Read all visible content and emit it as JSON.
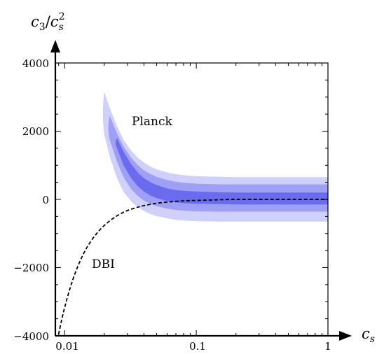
{
  "chart_data": {
    "type": "area",
    "title": "",
    "xlabel": "c_s",
    "ylabel": "c_3/c_s^2",
    "xscale": "log",
    "xlim": [
      0.0085,
      1
    ],
    "ylim": [
      -4000,
      4000
    ],
    "xticks": [
      0.01,
      0.1,
      1
    ],
    "xtick_labels": [
      "0.01",
      "0.1",
      "1"
    ],
    "yticks": [
      4000,
      2000,
      0,
      -2000,
      -4000
    ],
    "ytick_labels": [
      "4000",
      "2000",
      "0",
      "−2000",
      "−4000"
    ],
    "grid": false,
    "colors": {
      "band_outer": "#cfd0fb",
      "band_middle": "#9e9ff5",
      "band_inner": "#6a6bef",
      "dbi_curve": "#000000"
    },
    "series": [
      {
        "name": "Planck",
        "style": "filled-bands",
        "x": [
          0.02,
          0.022,
          0.025,
          0.028,
          0.032,
          0.036,
          0.04,
          0.045,
          0.05,
          0.06,
          0.07,
          0.08,
          0.1,
          0.15,
          0.2,
          0.3,
          0.5,
          1.0
        ],
        "outer_upper": [
          3150,
          2680,
          2150,
          1750,
          1430,
          1220,
          1080,
          960,
          880,
          790,
          740,
          710,
          680,
          660,
          650,
          650,
          650,
          650
        ],
        "outer_lower": [
          1900,
          1250,
          620,
          220,
          -60,
          -230,
          -340,
          -430,
          -490,
          -560,
          -600,
          -620,
          -640,
          -650,
          -650,
          -650,
          -650,
          -650
        ],
        "middle_upper": [
          null,
          2450,
          1930,
          1550,
          1220,
          1000,
          850,
          740,
          660,
          570,
          520,
          490,
          460,
          440,
          440,
          440,
          440,
          440
        ],
        "middle_lower": [
          null,
          1750,
          1100,
          650,
          300,
          100,
          -40,
          -140,
          -200,
          -270,
          -310,
          -330,
          -350,
          -360,
          -360,
          -360,
          -360,
          -360
        ],
        "inner_upper": [
          null,
          null,
          1800,
          1400,
          1030,
          780,
          620,
          500,
          420,
          320,
          270,
          250,
          230,
          210,
          200,
          200,
          200,
          200
        ],
        "inner_lower": [
          null,
          null,
          1500,
          1000,
          620,
          380,
          230,
          110,
          40,
          -50,
          -90,
          -110,
          -130,
          -140,
          -150,
          -150,
          -150,
          -150
        ]
      },
      {
        "name": "DBI",
        "style": "dashed-line",
        "x": [
          0.009,
          0.0095,
          0.01,
          0.011,
          0.012,
          0.013,
          0.014,
          0.015,
          0.017,
          0.02,
          0.025,
          0.03,
          0.035,
          0.04,
          0.05,
          0.06,
          0.08,
          0.1,
          0.15,
          0.2,
          0.3,
          0.5,
          1.0
        ],
        "y": [
          -3950,
          -3520,
          -3160,
          -2590,
          -2160,
          -1830,
          -1570,
          -1360,
          -1050,
          -750,
          -470,
          -320,
          -240,
          -180,
          -110,
          -80,
          -40,
          -30,
          -10,
          0,
          0,
          0,
          0
        ]
      }
    ],
    "annotations": [
      "Planck",
      "DBI"
    ]
  }
}
